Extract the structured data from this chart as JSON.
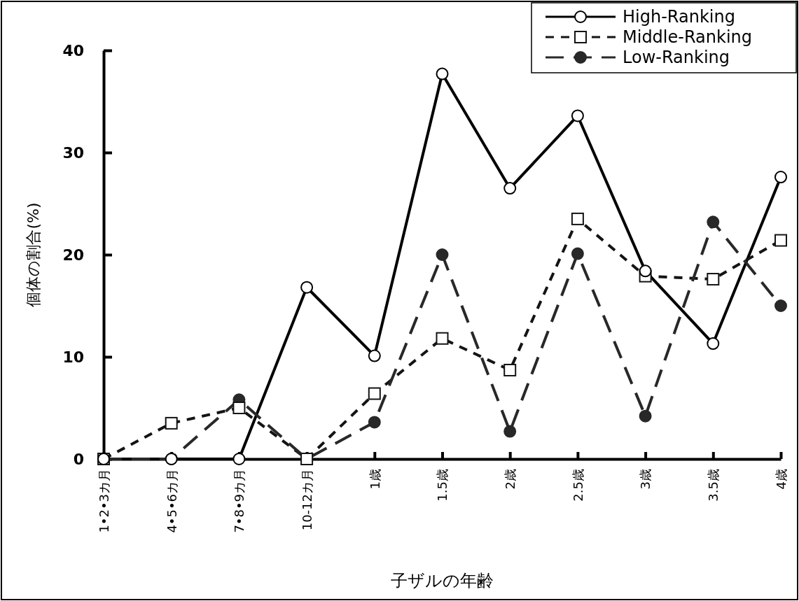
{
  "chart_data": {
    "type": "line",
    "xlabel": "子ザルの年齢",
    "ylabel": "個体の割合(%)",
    "categories": [
      "1•2•3カ月",
      "4•5•6カ月",
      "7•8•9カ月",
      "10-12カ月",
      "1歳",
      "1.5歳",
      "2歳",
      "2.5歳",
      "3歳",
      "3.5歳",
      "4歳"
    ],
    "ylim": [
      0,
      40
    ],
    "yticks": [
      0,
      10,
      20,
      30,
      40
    ],
    "legend": "top right",
    "series": [
      {
        "name": "High-Ranking",
        "color": "#000000",
        "marker": "circle",
        "line_style": "solid",
        "values": [
          0,
          0,
          0,
          16.8,
          10.1,
          37.7,
          26.5,
          33.6,
          18.4,
          11.3,
          27.6
        ]
      },
      {
        "name": "Middle-Ranking",
        "color": "#141414",
        "marker": "square",
        "line_style": "dotted",
        "values": [
          0,
          3.5,
          5.0,
          0,
          6.4,
          11.8,
          8.7,
          23.5,
          17.9,
          17.6,
          21.4
        ]
      },
      {
        "name": "Low-Ranking",
        "color": "#282828",
        "marker": "circle",
        "line_style": "dashed",
        "values": [
          0,
          0,
          5.8,
          0,
          3.6,
          20.0,
          2.7,
          20.1,
          4.2,
          23.2,
          15.0
        ]
      }
    ]
  }
}
